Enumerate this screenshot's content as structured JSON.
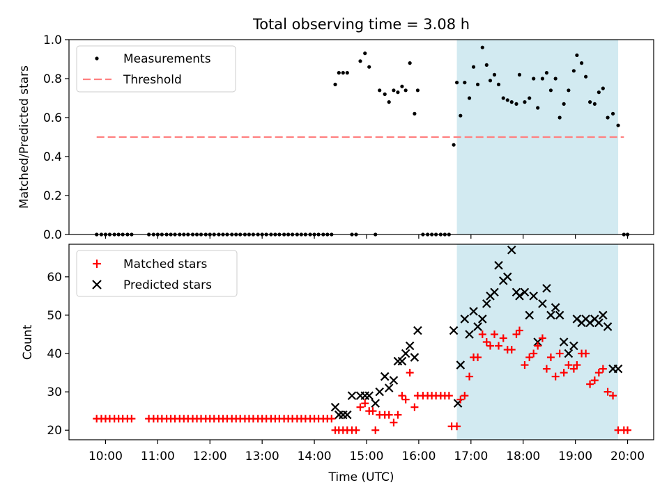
{
  "chart_data": {
    "title": "Total observing time = 3.08 h",
    "xlabel": "Time (UTC)",
    "x_unit": "hours UTC",
    "xlim": [
      9.3,
      20.5
    ],
    "xticks": [
      {
        "v": 10,
        "label": "10:00"
      },
      {
        "v": 11,
        "label": "11:00"
      },
      {
        "v": 12,
        "label": "12:00"
      },
      {
        "v": 13,
        "label": "13:00"
      },
      {
        "v": 14,
        "label": "14:00"
      },
      {
        "v": 15,
        "label": "15:00"
      },
      {
        "v": 16,
        "label": "16:00"
      },
      {
        "v": 17,
        "label": "17:00"
      },
      {
        "v": 18,
        "label": "18:00"
      },
      {
        "v": 19,
        "label": "19:00"
      },
      {
        "v": 20,
        "label": "20:00"
      }
    ],
    "observing_window": {
      "start": 16.73,
      "end": 19.82,
      "color": "#add8e6"
    },
    "top": {
      "type": "scatter",
      "ylabel": "Matched/Predicted stars",
      "ylim": [
        0,
        1.0
      ],
      "yticks": [
        {
          "v": 0.0,
          "label": "0.0"
        },
        {
          "v": 0.2,
          "label": "0.2"
        },
        {
          "v": 0.4,
          "label": "0.4"
        },
        {
          "v": 0.6,
          "label": "0.6"
        },
        {
          "v": 0.8,
          "label": "0.8"
        },
        {
          "v": 1.0,
          "label": "1.0"
        }
      ],
      "threshold": {
        "name": "Threshold",
        "value": 0.5,
        "x": [
          9.83,
          19.93
        ],
        "color": "#ff8080"
      },
      "legend": [
        "Measurements",
        "Threshold"
      ],
      "legend_loc": "upper-left",
      "measurements": {
        "name": "Measurements",
        "color": "#000000",
        "x": [
          9.83,
          9.92,
          10.0,
          10.08,
          10.17,
          10.25,
          10.33,
          10.42,
          10.5,
          10.83,
          10.92,
          11.0,
          11.08,
          11.17,
          11.25,
          11.33,
          11.42,
          11.5,
          11.58,
          11.67,
          11.75,
          11.83,
          11.92,
          12.0,
          12.08,
          12.17,
          12.25,
          12.33,
          12.42,
          12.5,
          12.58,
          12.67,
          12.75,
          12.83,
          12.92,
          13.0,
          13.08,
          13.17,
          13.25,
          13.33,
          13.42,
          13.5,
          13.58,
          13.67,
          13.75,
          13.83,
          13.92,
          14.0,
          14.08,
          14.17,
          14.25,
          14.33,
          14.4,
          14.47,
          14.55,
          14.63,
          14.72,
          14.8,
          14.88,
          14.97,
          15.05,
          15.17,
          15.25,
          15.35,
          15.43,
          15.52,
          15.6,
          15.68,
          15.75,
          15.83,
          15.92,
          15.98,
          16.08,
          16.17,
          16.25,
          16.33,
          16.42,
          16.5,
          16.58,
          16.67,
          16.73,
          16.8,
          16.88,
          16.97,
          17.05,
          17.13,
          17.22,
          17.3,
          17.37,
          17.45,
          17.53,
          17.62,
          17.7,
          17.78,
          17.87,
          17.93,
          18.03,
          18.12,
          18.2,
          18.28,
          18.37,
          18.45,
          18.53,
          18.62,
          18.7,
          18.78,
          18.87,
          18.97,
          19.03,
          19.12,
          19.2,
          19.28,
          19.37,
          19.45,
          19.53,
          19.62,
          19.72,
          19.82,
          19.93,
          20.0
        ],
        "y": [
          0,
          0,
          0,
          0,
          0,
          0,
          0,
          0,
          0,
          0,
          0,
          0,
          0,
          0,
          0,
          0,
          0,
          0,
          0,
          0,
          0,
          0,
          0,
          0,
          0,
          0,
          0,
          0,
          0,
          0,
          0,
          0,
          0,
          0,
          0,
          0,
          0,
          0,
          0,
          0,
          0,
          0,
          0,
          0,
          0,
          0,
          0,
          0,
          0,
          0,
          0,
          0,
          0.77,
          0.83,
          0.83,
          0.83,
          0,
          0,
          0.89,
          0.93,
          0.86,
          0,
          0.74,
          0.72,
          0.68,
          0.74,
          0.73,
          0.76,
          0.74,
          0.88,
          0.62,
          0.74,
          0,
          0,
          0,
          0,
          0,
          0,
          0,
          0.46,
          0.78,
          0.61,
          0.78,
          0.7,
          0.86,
          0.77,
          0.96,
          0.87,
          0.79,
          0.82,
          0.77,
          0.7,
          0.69,
          0.68,
          0.67,
          0.82,
          0.68,
          0.7,
          0.8,
          0.65,
          0.8,
          0.83,
          0.74,
          0.8,
          0.6,
          0.67,
          0.74,
          0.84,
          0.92,
          0.88,
          0.81,
          0.68,
          0.67,
          0.73,
          0.75,
          0.6,
          0.62,
          0.56,
          0,
          0
        ]
      }
    },
    "bottom": {
      "type": "scatter",
      "ylabel": "Count",
      "ylim": [
        17.5,
        68.5
      ],
      "yticks": [
        {
          "v": 20,
          "label": "20"
        },
        {
          "v": 30,
          "label": "30"
        },
        {
          "v": 40,
          "label": "40"
        },
        {
          "v": 50,
          "label": "50"
        },
        {
          "v": 60,
          "label": "60"
        }
      ],
      "legend": [
        "Matched stars",
        "Predicted stars"
      ],
      "legend_loc": "upper-left",
      "matched": {
        "name": "Matched stars",
        "color": "#ff0000",
        "marker": "plus",
        "x": [
          9.83,
          9.92,
          10.0,
          10.08,
          10.17,
          10.25,
          10.33,
          10.42,
          10.5,
          10.83,
          10.92,
          11.0,
          11.08,
          11.17,
          11.25,
          11.33,
          11.42,
          11.5,
          11.58,
          11.67,
          11.75,
          11.83,
          11.92,
          12.0,
          12.08,
          12.17,
          12.25,
          12.33,
          12.42,
          12.5,
          12.58,
          12.67,
          12.75,
          12.83,
          12.92,
          13.0,
          13.08,
          13.17,
          13.25,
          13.33,
          13.42,
          13.5,
          13.58,
          13.67,
          13.75,
          13.83,
          13.92,
          14.0,
          14.08,
          14.17,
          14.25,
          14.33,
          14.4,
          14.47,
          14.55,
          14.63,
          14.72,
          14.8,
          14.88,
          14.97,
          15.05,
          15.12,
          15.17,
          15.25,
          15.35,
          15.43,
          15.52,
          15.6,
          15.68,
          15.75,
          15.83,
          15.92,
          15.98,
          16.08,
          16.17,
          16.25,
          16.33,
          16.42,
          16.5,
          16.58,
          16.63,
          16.73,
          16.8,
          16.88,
          16.97,
          17.05,
          17.13,
          17.22,
          17.3,
          17.37,
          17.45,
          17.53,
          17.62,
          17.7,
          17.78,
          17.87,
          17.93,
          18.03,
          18.12,
          18.2,
          18.28,
          18.37,
          18.45,
          18.53,
          18.62,
          18.7,
          18.78,
          18.87,
          18.97,
          19.03,
          19.12,
          19.2,
          19.28,
          19.37,
          19.45,
          19.53,
          19.62,
          19.72,
          19.82,
          19.93,
          20.0
        ],
        "y": [
          23,
          23,
          23,
          23,
          23,
          23,
          23,
          23,
          23,
          23,
          23,
          23,
          23,
          23,
          23,
          23,
          23,
          23,
          23,
          23,
          23,
          23,
          23,
          23,
          23,
          23,
          23,
          23,
          23,
          23,
          23,
          23,
          23,
          23,
          23,
          23,
          23,
          23,
          23,
          23,
          23,
          23,
          23,
          23,
          23,
          23,
          23,
          23,
          23,
          23,
          23,
          23,
          20,
          20,
          20,
          20,
          20,
          20,
          26,
          27,
          25,
          25,
          20,
          24,
          24,
          24,
          22,
          24,
          29,
          28,
          35,
          26,
          29,
          29,
          29,
          29,
          29,
          29,
          29,
          29,
          21,
          21,
          28,
          29,
          34,
          39,
          39,
          45,
          43,
          42,
          45,
          42,
          44,
          41,
          41,
          45,
          46,
          37,
          39,
          40,
          42,
          44,
          36,
          39,
          34,
          40,
          35,
          37,
          36,
          37,
          40,
          40,
          32,
          33,
          35,
          36,
          30,
          29,
          20,
          20,
          20
        ]
      },
      "predicted": {
        "name": "Predicted stars",
        "color": "#000000",
        "marker": "x",
        "x": [
          14.4,
          14.47,
          14.55,
          14.63,
          14.72,
          14.88,
          14.97,
          15.05,
          15.17,
          15.25,
          15.35,
          15.43,
          15.52,
          15.6,
          15.68,
          15.75,
          15.83,
          15.92,
          15.98,
          16.67,
          16.75,
          16.8,
          16.88,
          16.97,
          17.05,
          17.13,
          17.22,
          17.3,
          17.37,
          17.45,
          17.53,
          17.62,
          17.7,
          17.78,
          17.87,
          17.93,
          18.03,
          18.12,
          18.2,
          18.28,
          18.37,
          18.45,
          18.53,
          18.62,
          18.7,
          18.78,
          18.87,
          18.97,
          19.03,
          19.12,
          19.2,
          19.28,
          19.37,
          19.45,
          19.53,
          19.62,
          19.72,
          19.82
        ],
        "y": [
          26,
          24,
          24,
          24,
          29,
          29,
          29,
          29,
          27,
          30,
          34,
          31,
          33,
          38,
          38,
          40,
          42,
          39,
          46,
          46,
          27,
          37,
          49,
          45,
          51,
          47,
          49,
          53,
          55,
          56,
          63,
          59,
          60,
          67,
          56,
          55,
          56,
          50,
          55,
          43,
          53,
          57,
          50,
          52,
          50,
          43,
          40,
          42,
          49,
          48,
          49,
          48,
          49,
          48,
          50,
          47,
          36,
          36
        ]
      }
    }
  }
}
